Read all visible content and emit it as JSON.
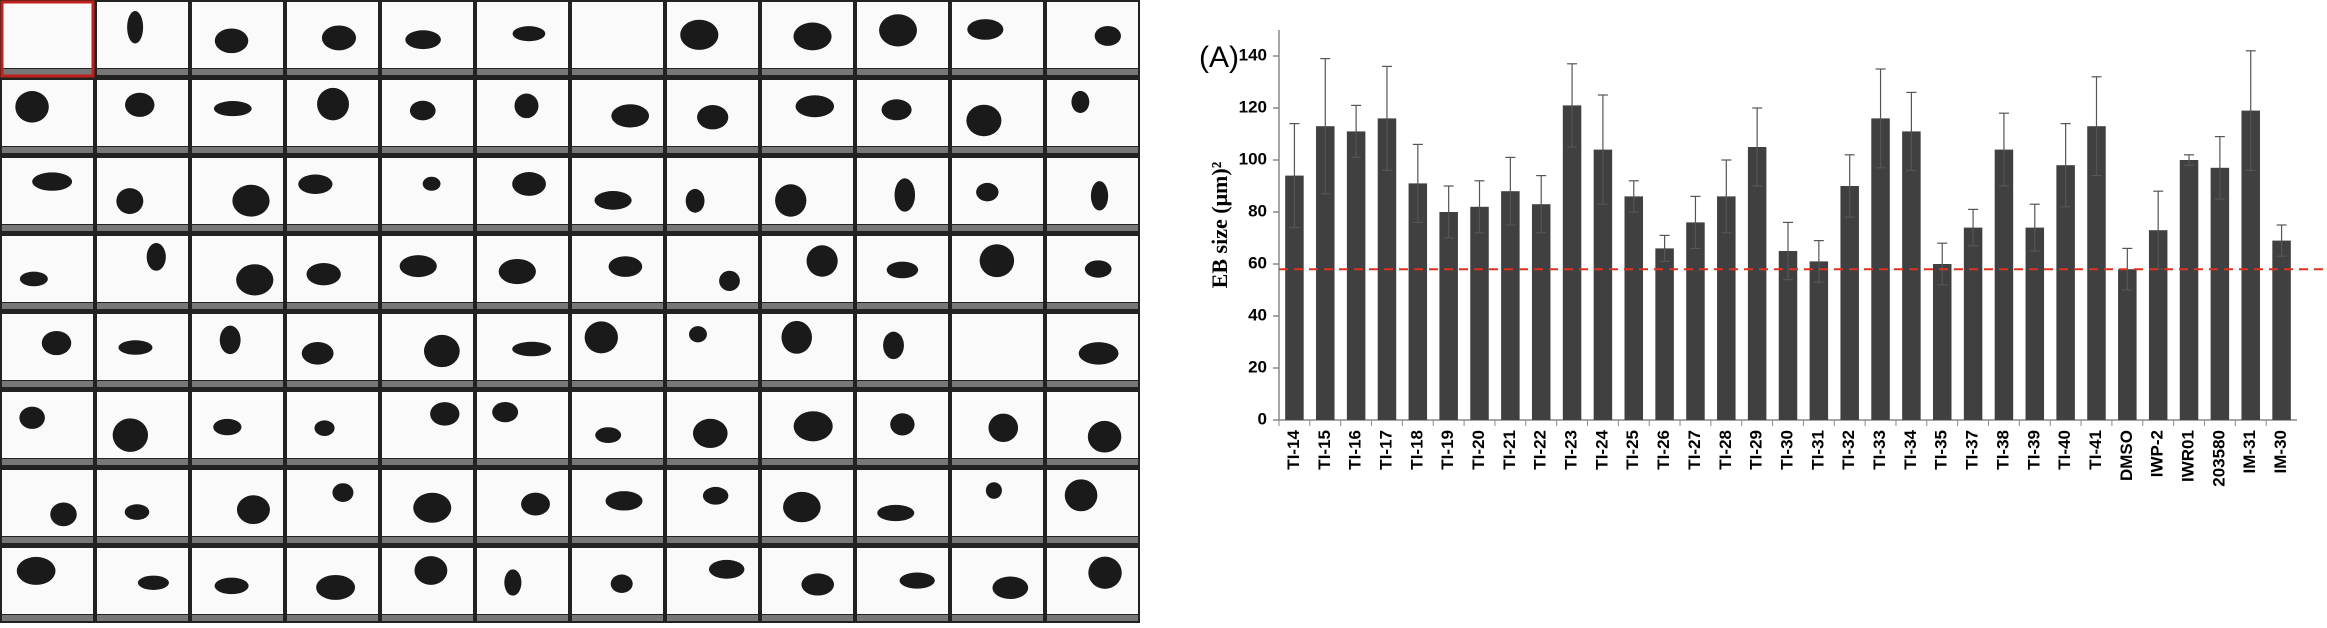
{
  "chart_data": {
    "type": "bar",
    "annotation": "(A)",
    "y_label": "EB size (μm)²",
    "categories": [
      "TI-14",
      "TI-15",
      "TI-16",
      "TI-17",
      "TI-18",
      "TI-19",
      "TI-20",
      "TI-21",
      "TI-22",
      "TI-23",
      "TI-24",
      "TI-25",
      "TI-26",
      "TI-27",
      "TI-28",
      "TI-29",
      "TI-30",
      "TI-31",
      "TI-32",
      "TI-33",
      "TI-34",
      "TI-35",
      "TI-37",
      "TI-38",
      "TI-39",
      "TI-40",
      "TI-41",
      "DMSO",
      "IWP-2",
      "IWR01",
      "203580",
      "IM-31",
      "IM-30"
    ],
    "values": [
      94,
      113,
      111,
      116,
      91,
      80,
      82,
      88,
      83,
      121,
      104,
      86,
      66,
      76,
      86,
      105,
      65,
      61,
      90,
      116,
      111,
      60,
      74,
      104,
      74,
      98,
      113,
      58,
      73,
      100,
      97,
      119,
      69
    ],
    "errors": [
      20,
      26,
      10,
      20,
      15,
      10,
      10,
      13,
      11,
      16,
      21,
      6,
      5,
      10,
      14,
      15,
      11,
      8,
      12,
      19,
      15,
      8,
      7,
      14,
      9,
      16,
      19,
      8,
      15,
      2,
      12,
      23,
      6
    ],
    "color": "#404040",
    "reference_line": 58,
    "reference_color": "#e03020",
    "ylim": [
      0,
      150
    ],
    "yticks": [
      0,
      20,
      40,
      60,
      80,
      100,
      120,
      140
    ]
  }
}
